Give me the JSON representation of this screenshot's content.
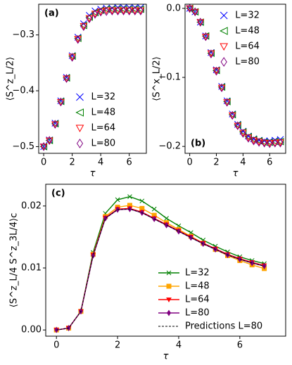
{
  "chart_data": [
    {
      "type": "scatter",
      "panel_label": "(a)",
      "xlabel": "τ",
      "ylabel": "⟨S^z_L/2⟩",
      "xlim": [
        -0.35,
        7.2
      ],
      "ylim": [
        -0.512,
        -0.245
      ],
      "xticks": [
        0,
        2,
        4,
        6
      ],
      "yticks": [
        {
          "value": -0.5,
          "label": "−0.5"
        },
        {
          "value": -0.4,
          "label": "−0.4"
        },
        {
          "value": -0.3,
          "label": "−0.3"
        }
      ],
      "legend": "lower right",
      "x": [
        0,
        0.4,
        0.8,
        1.2,
        1.6,
        2.0,
        2.4,
        2.8,
        3.2,
        3.6,
        4.0,
        4.4,
        4.8,
        5.2,
        5.6,
        6.0,
        6.4,
        6.8
      ],
      "series": [
        {
          "name": "L=32",
          "color": "#0000ff",
          "marker": "x",
          "values": [
            -0.5,
            -0.488,
            -0.458,
            -0.418,
            -0.376,
            -0.337,
            -0.304,
            -0.28,
            -0.265,
            -0.257,
            -0.254,
            -0.252,
            -0.252,
            -0.251,
            -0.251,
            -0.251,
            -0.251,
            -0.251
          ]
        },
        {
          "name": "L=48",
          "color": "#008000",
          "marker": "triangle-left",
          "values": [
            -0.5,
            -0.489,
            -0.459,
            -0.419,
            -0.377,
            -0.338,
            -0.306,
            -0.283,
            -0.268,
            -0.26,
            -0.256,
            -0.254,
            -0.254,
            -0.254,
            -0.254,
            -0.254,
            -0.254,
            -0.254
          ]
        },
        {
          "name": "L=64",
          "color": "#ff0000",
          "marker": "triangle-down",
          "values": [
            -0.5,
            -0.489,
            -0.46,
            -0.42,
            -0.378,
            -0.339,
            -0.307,
            -0.284,
            -0.27,
            -0.262,
            -0.258,
            -0.256,
            -0.256,
            -0.256,
            -0.256,
            -0.256,
            -0.256,
            -0.256
          ]
        },
        {
          "name": "L=80",
          "color": "#800080",
          "marker": "diamond",
          "values": [
            -0.5,
            -0.489,
            -0.46,
            -0.42,
            -0.378,
            -0.34,
            -0.308,
            -0.285,
            -0.271,
            -0.263,
            -0.259,
            -0.258,
            -0.257,
            -0.257,
            -0.257,
            -0.257,
            -0.257,
            -0.257
          ]
        }
      ]
    },
    {
      "type": "scatter",
      "panel_label": "(b)",
      "xlabel": "τ",
      "ylabel": "⟨S^x_L/2⟩",
      "xlim": [
        -0.35,
        7.2
      ],
      "ylim": [
        -0.21,
        0.006
      ],
      "xticks": [
        0,
        2,
        4,
        6
      ],
      "yticks": [
        {
          "value": -0.2,
          "label": "−0.2"
        },
        {
          "value": -0.1,
          "label": "−0.1"
        },
        {
          "value": 0,
          "label": "0.0"
        }
      ],
      "legend": "upper right",
      "x": [
        0,
        0.4,
        0.8,
        1.2,
        1.6,
        2.0,
        2.4,
        2.8,
        3.2,
        3.6,
        4.0,
        4.4,
        4.8,
        5.2,
        5.6,
        6.0,
        6.4,
        6.8
      ],
      "series": [
        {
          "name": "L=32",
          "color": "#0000ff",
          "marker": "x",
          "values": [
            0,
            -0.005,
            -0.02,
            -0.04,
            -0.064,
            -0.089,
            -0.113,
            -0.134,
            -0.153,
            -0.168,
            -0.178,
            -0.185,
            -0.189,
            -0.191,
            -0.192,
            -0.192,
            -0.191,
            -0.19
          ]
        },
        {
          "name": "L=48",
          "color": "#008000",
          "marker": "triangle-left",
          "values": [
            0,
            -0.005,
            -0.02,
            -0.04,
            -0.065,
            -0.09,
            -0.114,
            -0.135,
            -0.154,
            -0.169,
            -0.179,
            -0.186,
            -0.19,
            -0.192,
            -0.194,
            -0.194,
            -0.193,
            -0.193
          ]
        },
        {
          "name": "L=64",
          "color": "#ff0000",
          "marker": "triangle-down",
          "values": [
            0,
            -0.005,
            -0.02,
            -0.041,
            -0.065,
            -0.09,
            -0.115,
            -0.136,
            -0.155,
            -0.17,
            -0.18,
            -0.187,
            -0.191,
            -0.193,
            -0.195,
            -0.195,
            -0.195,
            -0.194
          ]
        },
        {
          "name": "L=80",
          "color": "#800080",
          "marker": "diamond",
          "values": [
            0,
            -0.005,
            -0.02,
            -0.041,
            -0.066,
            -0.091,
            -0.115,
            -0.136,
            -0.155,
            -0.17,
            -0.181,
            -0.188,
            -0.192,
            -0.194,
            -0.195,
            -0.196,
            -0.195,
            -0.195
          ]
        }
      ]
    },
    {
      "type": "line",
      "panel_label": "(c)",
      "xlabel": "τ",
      "ylabel": "⟨S^z_L/4 S^z_3L/4⟩c",
      "xlim": [
        -0.35,
        7.5
      ],
      "ylim": [
        -0.001,
        0.0235
      ],
      "xticks": [
        0,
        2,
        4,
        6
      ],
      "yticks": [
        {
          "value": 0,
          "label": "0.00"
        },
        {
          "value": 0.01,
          "label": "0.01"
        },
        {
          "value": 0.02,
          "label": "0.02"
        }
      ],
      "legend": "lower right",
      "x": [
        0,
        0.4,
        0.8,
        1.2,
        1.6,
        2.0,
        2.4,
        2.8,
        3.2,
        3.6,
        4.0,
        4.4,
        4.8,
        5.2,
        5.6,
        6.0,
        6.4,
        6.8
      ],
      "series": [
        {
          "name": "L=32",
          "color": "#008000",
          "marker": "x",
          "values": [
            0,
            0.0003,
            0.003,
            0.0125,
            0.0188,
            0.021,
            0.0215,
            0.0208,
            0.0195,
            0.018,
            0.0168,
            0.0157,
            0.0145,
            0.0135,
            0.0126,
            0.0118,
            0.0112,
            0.0107
          ]
        },
        {
          "name": "L=48",
          "color": "#ffa500",
          "marker": "square",
          "values": [
            0,
            0.0003,
            0.003,
            0.0122,
            0.0183,
            0.0198,
            0.0201,
            0.0196,
            0.0185,
            0.0173,
            0.0162,
            0.0151,
            0.014,
            0.013,
            0.012,
            0.0112,
            0.0105,
            0.0099
          ]
        },
        {
          "name": "L=64",
          "color": "#ff0000",
          "marker": "triangle-down",
          "values": [
            0,
            0.0003,
            0.003,
            0.0121,
            0.0181,
            0.0195,
            0.0196,
            0.019,
            0.018,
            0.017,
            0.016,
            0.015,
            0.014,
            0.0131,
            0.0122,
            0.0115,
            0.0109,
            0.0104
          ]
        },
        {
          "name": "L=80",
          "color": "#800080",
          "marker": "diamond",
          "values": [
            0,
            0.0003,
            0.003,
            0.012,
            0.018,
            0.0194,
            0.0195,
            0.0189,
            0.0179,
            0.0169,
            0.0159,
            0.0149,
            0.0139,
            0.013,
            0.0121,
            0.0114,
            0.0108,
            0.0103
          ]
        },
        {
          "name": "Predictions L=80",
          "color": "#000000",
          "dashed": true,
          "values": [
            0,
            0.0003,
            0.003,
            0.012,
            0.018,
            0.0194,
            0.0195,
            0.0189,
            0.0179,
            0.0169,
            0.0159,
            0.0149,
            0.0139,
            0.013,
            0.0121,
            0.0114,
            0.0108,
            0.0103
          ]
        }
      ]
    }
  ]
}
